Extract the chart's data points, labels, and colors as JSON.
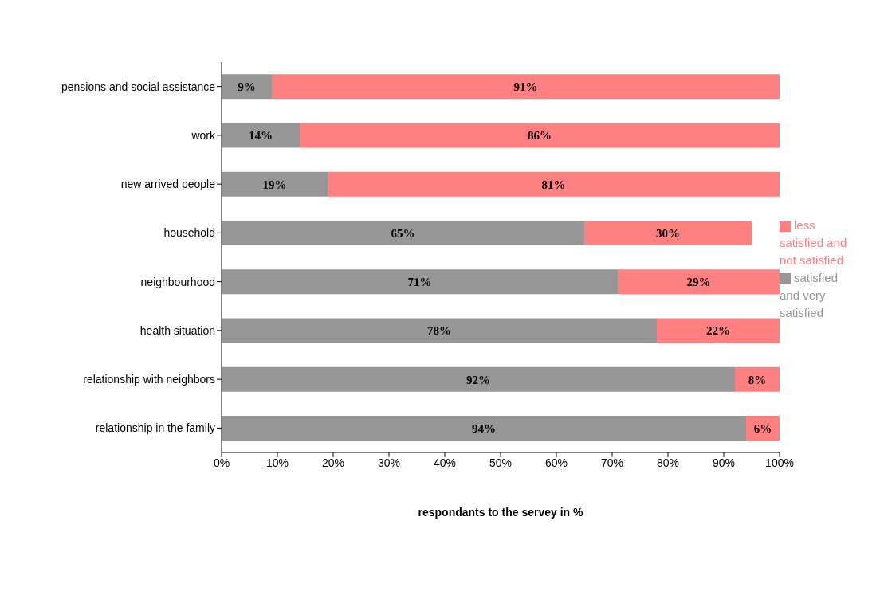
{
  "chart_data": {
    "type": "bar",
    "orientation": "horizontal",
    "stacked": true,
    "xlabel": "respondants to the servey in %",
    "categories": [
      "pensions and social assistance",
      "work",
      "new arrived people",
      "household",
      "neighbourhood",
      "health situation",
      "relationship with neighbors",
      "relationship in the family"
    ],
    "series": [
      {
        "name": "satisfied and very satisfied",
        "color": "#969696",
        "values": [
          9,
          14,
          19,
          65,
          71,
          78,
          92,
          94
        ],
        "value_labels": [
          "9%",
          "14%",
          "19%",
          "65%",
          "71%",
          "78%",
          "92%",
          "94%"
        ]
      },
      {
        "name": "less satisfied and not satisfied",
        "color": "#ff8080",
        "values": [
          91,
          86,
          81,
          30,
          29,
          22,
          8,
          6
        ],
        "value_labels": [
          "91%",
          "86%",
          "81%",
          "30%",
          "29%",
          "22%",
          "8%",
          "6%"
        ]
      }
    ],
    "xlim": [
      0,
      100
    ],
    "xticks": [
      {
        "value": 0,
        "label": "0%"
      },
      {
        "value": 10,
        "label": "10%"
      },
      {
        "value": 20,
        "label": "20%"
      },
      {
        "value": 30,
        "label": "30%"
      },
      {
        "value": 40,
        "label": "40%"
      },
      {
        "value": 50,
        "label": "50%"
      },
      {
        "value": 60,
        "label": "60%"
      },
      {
        "value": 70,
        "label": "70%"
      },
      {
        "value": 80,
        "label": "80%"
      },
      {
        "value": 90,
        "label": "90%"
      },
      {
        "value": 100,
        "label": "100%"
      }
    ],
    "grid": false,
    "legend": "right"
  }
}
